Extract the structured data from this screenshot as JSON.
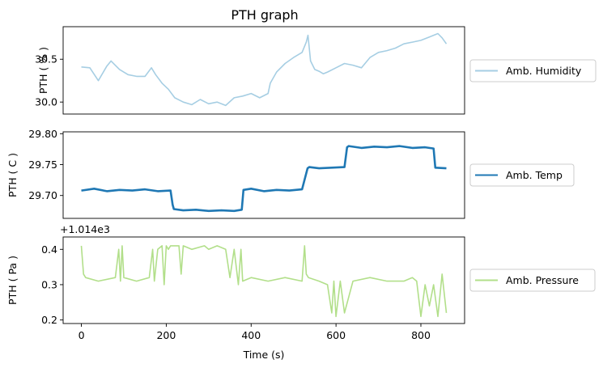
{
  "chart_data": [
    {
      "type": "line",
      "title": "PTH graph",
      "ylabel": "PTH ( % )",
      "xlim": [
        -43,
        903
      ],
      "ylim": [
        29.86,
        30.88
      ],
      "yticks": [
        30.0,
        30.5
      ],
      "ytick_labels": [
        "30.0",
        "30.5"
      ],
      "show_xticklabels": false,
      "grid": false,
      "legend_position": "right",
      "series": [
        {
          "name": "Amb. Humidity",
          "color": "#a6cee3",
          "x": [
            0,
            20,
            40,
            60,
            70,
            90,
            110,
            130,
            150,
            165,
            175,
            190,
            205,
            220,
            240,
            260,
            280,
            300,
            320,
            340,
            360,
            380,
            400,
            420,
            440,
            445,
            460,
            480,
            500,
            520,
            530,
            534,
            540,
            550,
            560,
            570,
            580,
            600,
            620,
            640,
            660,
            680,
            700,
            720,
            740,
            760,
            780,
            800,
            820,
            840,
            850,
            860
          ],
          "y": [
            30.41,
            30.4,
            30.25,
            30.42,
            30.48,
            30.38,
            30.32,
            30.3,
            30.3,
            30.4,
            30.32,
            30.22,
            30.15,
            30.05,
            30.0,
            29.97,
            30.03,
            29.98,
            30.0,
            29.96,
            30.05,
            30.07,
            30.1,
            30.05,
            30.1,
            30.22,
            30.35,
            30.45,
            30.52,
            30.58,
            30.7,
            30.78,
            30.48,
            30.38,
            30.36,
            30.33,
            30.35,
            30.4,
            30.45,
            30.43,
            30.4,
            30.52,
            30.58,
            30.6,
            30.63,
            30.68,
            30.7,
            30.72,
            30.76,
            30.8,
            30.75,
            30.68
          ]
        }
      ]
    },
    {
      "type": "line",
      "ylabel": "PTH ( C )",
      "xlim": [
        -43,
        903
      ],
      "ylim": [
        29.663,
        29.803
      ],
      "yticks": [
        29.7,
        29.75,
        29.8
      ],
      "ytick_labels": [
        "29.70",
        "29.75",
        "29.80"
      ],
      "show_xticklabels": false,
      "grid": false,
      "legend_position": "right",
      "series": [
        {
          "name": "Amb. Temp",
          "color": "#1f78b4",
          "x": [
            0,
            30,
            60,
            90,
            120,
            150,
            180,
            210,
            215,
            218,
            240,
            270,
            300,
            330,
            360,
            378,
            382,
            400,
            430,
            460,
            490,
            520,
            533,
            537,
            560,
            590,
            620,
            626,
            630,
            660,
            690,
            720,
            750,
            780,
            810,
            830,
            834,
            860
          ],
          "y": [
            29.708,
            29.711,
            29.707,
            29.709,
            29.708,
            29.71,
            29.707,
            29.708,
            29.685,
            29.678,
            29.676,
            29.677,
            29.675,
            29.676,
            29.675,
            29.677,
            29.709,
            29.711,
            29.707,
            29.709,
            29.708,
            29.71,
            29.744,
            29.746,
            29.744,
            29.745,
            29.746,
            29.778,
            29.78,
            29.777,
            29.779,
            29.778,
            29.78,
            29.777,
            29.778,
            29.776,
            29.745,
            29.744
          ]
        }
      ]
    },
    {
      "type": "line",
      "ylabel": "PTH ( Pa )",
      "xlabel": "Time (s)",
      "offset_text": "+1.014e3",
      "xlim": [
        -43,
        903
      ],
      "ylim": [
        0.19,
        0.435
      ],
      "yticks": [
        0.2,
        0.3,
        0.4
      ],
      "ytick_labels": [
        "0.2",
        "0.3",
        "0.4"
      ],
      "xticks": [
        0,
        200,
        400,
        600,
        800
      ],
      "xtick_labels": [
        "0",
        "200",
        "400",
        "600",
        "800"
      ],
      "grid": false,
      "legend_position": "right",
      "series": [
        {
          "name": "Amb. Pressure",
          "color": "#b2df8a",
          "x": [
            0,
            5,
            10,
            40,
            80,
            88,
            92,
            96,
            100,
            130,
            160,
            168,
            172,
            180,
            190,
            195,
            200,
            205,
            210,
            230,
            235,
            240,
            260,
            290,
            300,
            320,
            340,
            350,
            360,
            370,
            376,
            380,
            400,
            440,
            480,
            520,
            526,
            530,
            535,
            560,
            580,
            590,
            595,
            600,
            610,
            620,
            640,
            680,
            720,
            760,
            780,
            790,
            800,
            810,
            820,
            830,
            840,
            850,
            860
          ],
          "y": [
            0.41,
            0.33,
            0.32,
            0.31,
            0.32,
            0.4,
            0.31,
            0.41,
            0.32,
            0.31,
            0.32,
            0.4,
            0.31,
            0.4,
            0.41,
            0.3,
            0.41,
            0.4,
            0.41,
            0.41,
            0.33,
            0.41,
            0.4,
            0.41,
            0.4,
            0.41,
            0.4,
            0.32,
            0.4,
            0.3,
            0.4,
            0.31,
            0.32,
            0.31,
            0.32,
            0.31,
            0.41,
            0.33,
            0.32,
            0.31,
            0.3,
            0.22,
            0.31,
            0.21,
            0.31,
            0.22,
            0.31,
            0.32,
            0.31,
            0.31,
            0.32,
            0.31,
            0.21,
            0.3,
            0.24,
            0.3,
            0.21,
            0.33,
            0.22
          ]
        }
      ]
    }
  ]
}
